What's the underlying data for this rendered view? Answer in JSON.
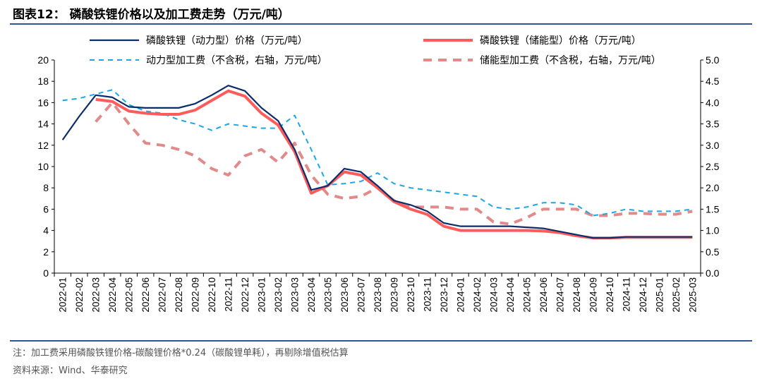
{
  "title": "图表12：  磷酸铁锂价格以及加工费走势（万元/吨）",
  "notes": [
    "注：加工费采用磷酸铁锂价格-碳酸锂价格*0.24（碳酸锂单耗），再剔除增值税估算",
    "资料来源：Wind、华泰研究"
  ],
  "colors": {
    "power_price": "#0b2d6b",
    "storage_price": "#ff5b5b",
    "power_fee": "#1aa7e8",
    "storage_fee": "#e08a8a",
    "rule": "#2e5597"
  },
  "chart_data": {
    "type": "line",
    "x": [
      "2022-01",
      "2022-02",
      "2022-03",
      "2022-04",
      "2022-05",
      "2022-06",
      "2022-07",
      "2022-08",
      "2022-09",
      "2022-10",
      "2022-11",
      "2022-12",
      "2023-01",
      "2023-02",
      "2023-03",
      "2023-04",
      "2023-05",
      "2023-06",
      "2023-07",
      "2023-08",
      "2023-09",
      "2023-10",
      "2023-11",
      "2023-12",
      "2024-01",
      "2024-02",
      "2024-03",
      "2024-04",
      "2024-05",
      "2024-06",
      "2024-07",
      "2024-08",
      "2024-09",
      "2024-10",
      "2024-11",
      "2024-12",
      "2025-01",
      "2025-02",
      "2025-03"
    ],
    "yleft": {
      "ylim": [
        0,
        20
      ],
      "ticks": [
        "0",
        "2",
        "4",
        "6",
        "8",
        "10",
        "12",
        "14",
        "16",
        "18",
        "20"
      ]
    },
    "yright": {
      "ylim": [
        0,
        5
      ],
      "ticks": [
        "0.0",
        "0.5",
        "1.0",
        "1.5",
        "2.0",
        "2.5",
        "3.0",
        "3.5",
        "4.0",
        "4.5",
        "5.0"
      ]
    },
    "legend_position": "top",
    "series": [
      {
        "name": "磷酸铁锂（动力型）价格（万元/吨）",
        "axis": "left",
        "style": "solid",
        "values": [
          12.5,
          14.7,
          16.7,
          16.5,
          15.6,
          15.5,
          15.5,
          15.5,
          15.9,
          16.7,
          17.6,
          17.1,
          15.5,
          14.3,
          11.6,
          7.8,
          8.2,
          9.8,
          9.5,
          8.2,
          6.8,
          6.4,
          5.8,
          4.7,
          4.4,
          4.4,
          4.4,
          4.4,
          4.3,
          4.2,
          3.9,
          3.6,
          3.3,
          3.3,
          3.4,
          3.4,
          3.4,
          3.4,
          3.4
        ]
      },
      {
        "name": "磷酸铁锂（储能型）价格（万元/吨）",
        "axis": "left",
        "style": "solid-thick",
        "values": [
          null,
          null,
          16.3,
          16.1,
          15.2,
          15.0,
          14.9,
          14.9,
          15.3,
          16.2,
          17.1,
          16.6,
          15.0,
          13.9,
          11.4,
          7.5,
          8.2,
          9.5,
          9.2,
          8.0,
          6.7,
          6.0,
          5.5,
          4.4,
          4.0,
          4.0,
          4.0,
          4.0,
          4.0,
          3.95,
          3.8,
          3.5,
          3.3,
          3.3,
          3.35,
          3.35,
          3.35,
          3.35,
          3.35
        ]
      },
      {
        "name": "动力型加工费（不含税，右轴，万元/吨）",
        "axis": "right",
        "style": "dashed",
        "values": [
          4.05,
          4.1,
          4.2,
          4.3,
          3.95,
          3.8,
          3.75,
          3.6,
          3.5,
          3.35,
          3.5,
          3.45,
          3.4,
          3.4,
          3.7,
          2.9,
          2.07,
          2.1,
          2.15,
          2.35,
          2.1,
          2.0,
          1.95,
          1.9,
          1.85,
          1.8,
          1.55,
          1.5,
          1.55,
          1.65,
          1.65,
          1.6,
          1.35,
          1.4,
          1.5,
          1.45,
          1.45,
          1.45,
          1.5
        ]
      },
      {
        "name": "储能型加工费（不含税，右轴，万元/吨）",
        "axis": "right",
        "style": "dashed-thick",
        "values": [
          null,
          null,
          3.55,
          4.0,
          3.5,
          3.05,
          3.0,
          2.9,
          2.75,
          2.45,
          2.3,
          2.75,
          2.9,
          2.6,
          3.05,
          2.3,
          1.85,
          1.75,
          1.8,
          2.0,
          1.7,
          1.55,
          1.55,
          1.55,
          1.5,
          1.5,
          1.2,
          1.15,
          1.3,
          1.5,
          1.5,
          1.5,
          1.35,
          1.35,
          1.4,
          1.4,
          1.38,
          1.38,
          1.45
        ]
      }
    ]
  }
}
